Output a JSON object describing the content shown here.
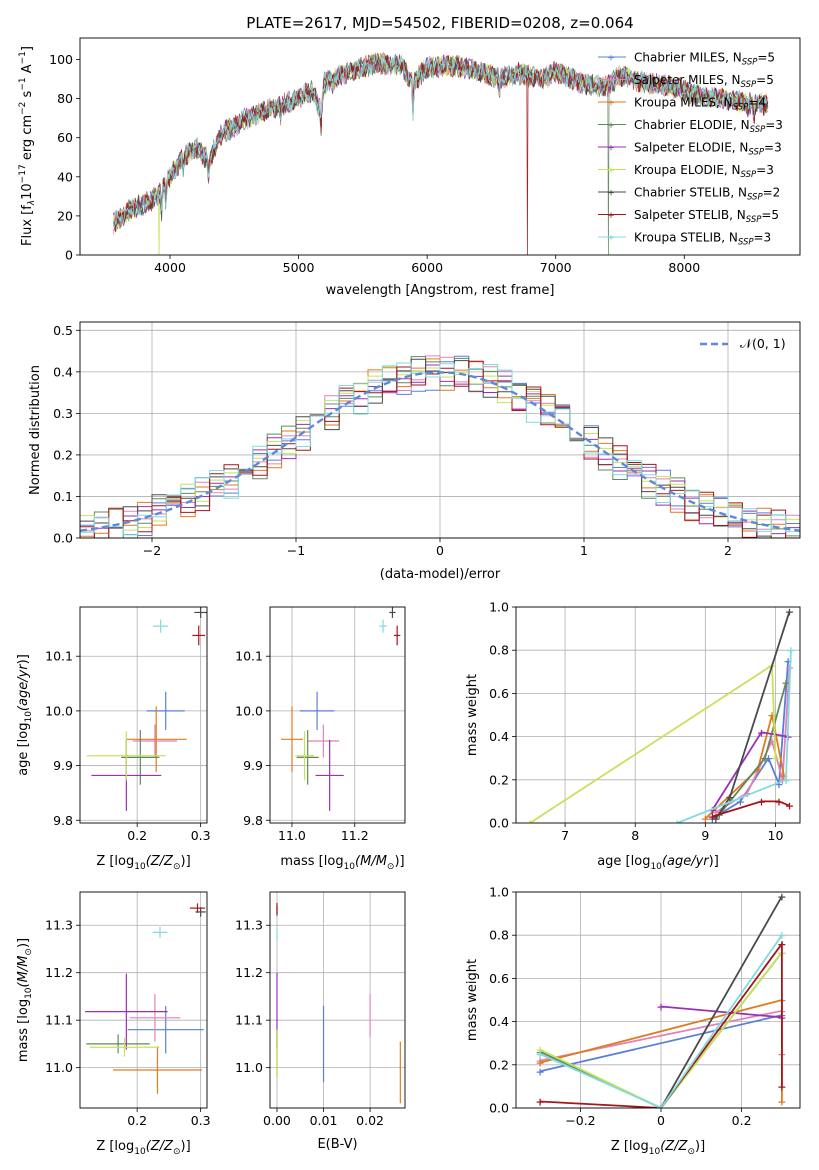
{
  "figure": {
    "title": "PLATE=2617, MJD=54502, FIBERID=0208, z=0.064"
  },
  "series": [
    {
      "name": "Chabrier MILES, N$_{SSP}$=5",
      "label_main": "Chabrier MILES, N",
      "label_sub": "SSP",
      "label_tail": "=5",
      "color": "#5b7fd6"
    },
    {
      "name": "Salpeter MILES, N$_{SSP}$=5",
      "label_main": "Salpeter MILES, N",
      "label_sub": "SSP",
      "label_tail": "=5",
      "color": "#e381b8"
    },
    {
      "name": "Kroupa MILES, N$_{SSP}$=4",
      "label_main": "Kroupa MILES, N",
      "label_sub": "SSP",
      "label_tail": "=4",
      "color": "#e07a1f"
    },
    {
      "name": "Chabrier ELODIE, N$_{SSP}$=3",
      "label_main": "Chabrier ELODIE, N",
      "label_sub": "SSP",
      "label_tail": "=3",
      "color": "#5f8a5f"
    },
    {
      "name": "Salpeter ELODIE, N$_{SSP}$=3",
      "label_main": "Salpeter ELODIE, N",
      "label_sub": "SSP",
      "label_tail": "=3",
      "color": "#9b30b5"
    },
    {
      "name": "Kroupa ELODIE, N$_{SSP}$=3",
      "label_main": "Kroupa ELODIE, N",
      "label_sub": "SSP",
      "label_tail": "=3",
      "color": "#c6e25a"
    },
    {
      "name": "Chabrier STELIB, N$_{SSP}$=2",
      "label_main": "Chabrier STELIB, N",
      "label_sub": "SSP",
      "label_tail": "=2",
      "color": "#4a4a4a"
    },
    {
      "name": "Salpeter STELIB, N$_{SSP}$=5",
      "label_main": "Salpeter STELIB, N",
      "label_sub": "SSP",
      "label_tail": "=5",
      "color": "#a4161a"
    },
    {
      "name": "Kroupa STELIB, N$_{SSP}$=3",
      "label_main": "Kroupa STELIB, N",
      "label_sub": "SSP",
      "label_tail": "=3",
      "color": "#7fdbe0"
    }
  ],
  "chart_data": [
    {
      "id": "spectrum",
      "type": "line",
      "xlabel": "wavelength [Angstrom, rest frame]",
      "ylabel_main": "Flux [f",
      "ylabel_rest": "10",
      "ylabel_exp": "−17",
      "ylabel_units": "erg cm",
      "xlim": [
        3300,
        8900
      ],
      "ylim": [
        0,
        111
      ],
      "xticks": [
        4000,
        5000,
        6000,
        7000,
        8000
      ],
      "yticks": [
        0,
        20,
        40,
        60,
        80,
        100
      ],
      "continuum": [
        [
          3560,
          16
        ],
        [
          3700,
          24
        ],
        [
          3800,
          26
        ],
        [
          3900,
          30
        ],
        [
          4000,
          40
        ],
        [
          4100,
          50
        ],
        [
          4200,
          55
        ],
        [
          4300,
          48
        ],
        [
          4400,
          62
        ],
        [
          4500,
          66
        ],
        [
          4600,
          70
        ],
        [
          4800,
          75
        ],
        [
          5000,
          80
        ],
        [
          5100,
          84
        ],
        [
          5175,
          74
        ],
        [
          5200,
          88
        ],
        [
          5400,
          94
        ],
        [
          5600,
          98
        ],
        [
          5800,
          97
        ],
        [
          5890,
          88
        ],
        [
          6000,
          96
        ],
        [
          6200,
          97
        ],
        [
          6400,
          94
        ],
        [
          6563,
          90
        ],
        [
          6700,
          93
        ],
        [
          6900,
          90
        ],
        [
          7000,
          94
        ],
        [
          7200,
          88
        ],
        [
          7400,
          86
        ],
        [
          7500,
          92
        ],
        [
          7700,
          88
        ],
        [
          7900,
          86
        ],
        [
          8100,
          82
        ],
        [
          8300,
          80
        ],
        [
          8500,
          78
        ],
        [
          8600,
          77
        ]
      ],
      "absorption_lines": [
        [
          3934,
          -12
        ],
        [
          3968,
          -10
        ],
        [
          4102,
          -6
        ],
        [
          4300,
          -10
        ],
        [
          4861,
          -5
        ],
        [
          5175,
          -8
        ],
        [
          5270,
          -4
        ],
        [
          5890,
          -16
        ],
        [
          6563,
          -6
        ],
        [
          8498,
          -4
        ],
        [
          8542,
          -6
        ],
        [
          8662,
          -5
        ]
      ],
      "dropouts": [
        [
          3915,
          5
        ],
        [
          6780,
          7
        ],
        [
          7410,
          3
        ]
      ],
      "legend_position": "upper-right"
    },
    {
      "id": "residuals",
      "type": "histogram",
      "xlabel": "(data-model)/error",
      "ylabel": "Normed distribution",
      "xlim": [
        -2.5,
        2.5
      ],
      "ylim": [
        0,
        0.52
      ],
      "xticks": [
        -2,
        -1,
        0,
        1,
        2
      ],
      "yticks": [
        0.0,
        0.1,
        0.2,
        0.3,
        0.4,
        0.5
      ],
      "bin_width": 0.1,
      "reference_label": "𝒩(0, 1)",
      "reference_color": "#5b8bd8",
      "legend_position": "upper-right",
      "series_variation_seed": 7
    },
    {
      "id": "age_vs_z",
      "type": "errorbar",
      "xlabel": "Z [log",
      "ylabel": "age  [log",
      "xlim": [
        0.11,
        0.31
      ],
      "ylim": [
        9.795,
        10.19
      ],
      "xticks": [
        0.2,
        0.3
      ],
      "yticks": [
        9.8,
        9.9,
        10.0,
        10.1
      ],
      "points": [
        {
          "s": 0,
          "x": 0.245,
          "y": 10.0,
          "xerr": 0.03,
          "yerr": 0.035
        },
        {
          "s": 1,
          "x": 0.228,
          "y": 9.945,
          "xerr": 0.035,
          "yerr": 0.03
        },
        {
          "s": 2,
          "x": 0.23,
          "y": 9.948,
          "xerr": 0.048,
          "yerr": 0.06
        },
        {
          "s": 3,
          "x": 0.205,
          "y": 9.915,
          "xerr": 0.03,
          "yerr": 0.05
        },
        {
          "s": 4,
          "x": 0.183,
          "y": 9.882,
          "xerr": 0.055,
          "yerr": 0.065
        },
        {
          "s": 5,
          "x": 0.183,
          "y": 9.918,
          "xerr": 0.062,
          "yerr": 0.045
        },
        {
          "s": 6,
          "x": 0.3,
          "y": 10.18,
          "xerr": 0.01,
          "yerr": 0.01
        },
        {
          "s": 7,
          "x": 0.297,
          "y": 10.138,
          "xerr": 0.01,
          "yerr": 0.018
        },
        {
          "s": 8,
          "x": 0.237,
          "y": 10.155,
          "xerr": 0.012,
          "yerr": 0.012
        }
      ]
    },
    {
      "id": "age_vs_mass",
      "type": "errorbar",
      "xlabel": "mass [log",
      "ylabel": "",
      "xlim": [
        10.93,
        11.36
      ],
      "ylim": [
        9.795,
        10.19
      ],
      "xticks": [
        11.0,
        11.2
      ],
      "yticks": [
        9.8,
        9.9,
        10.0,
        10.1
      ],
      "points": [
        {
          "s": 0,
          "x": 11.08,
          "y": 10.0,
          "xerr": 0.055,
          "yerr": 0.035
        },
        {
          "s": 1,
          "x": 11.1,
          "y": 9.945,
          "xerr": 0.05,
          "yerr": 0.03
        },
        {
          "s": 2,
          "x": 11.0,
          "y": 9.948,
          "xerr": 0.035,
          "yerr": 0.06
        },
        {
          "s": 3,
          "x": 11.05,
          "y": 9.915,
          "xerr": 0.035,
          "yerr": 0.05
        },
        {
          "s": 4,
          "x": 11.12,
          "y": 9.882,
          "xerr": 0.045,
          "yerr": 0.065
        },
        {
          "s": 5,
          "x": 11.04,
          "y": 9.918,
          "xerr": 0.03,
          "yerr": 0.045
        },
        {
          "s": 6,
          "x": 11.32,
          "y": 10.18,
          "xerr": 0.01,
          "yerr": 0.01
        },
        {
          "s": 7,
          "x": 11.335,
          "y": 10.138,
          "xerr": 0.01,
          "yerr": 0.018
        },
        {
          "s": 8,
          "x": 11.29,
          "y": 10.155,
          "xerr": 0.012,
          "yerr": 0.012
        }
      ]
    },
    {
      "id": "weight_vs_age",
      "type": "line",
      "xlabel": "age  [log",
      "ylabel": "mass weight",
      "xlim": [
        6.3,
        10.35
      ],
      "ylim": [
        0,
        1.0
      ],
      "xticks": [
        7,
        8,
        9,
        10
      ],
      "yticks": [
        0.0,
        0.2,
        0.4,
        0.6,
        0.8,
        1.0
      ],
      "lines": [
        {
          "s": 0,
          "pts": [
            [
              9.1,
              0.02
            ],
            [
              9.5,
              0.1
            ],
            [
              9.9,
              0.3
            ],
            [
              10.05,
              0.18
            ],
            [
              10.18,
              0.75
            ]
          ]
        },
        {
          "s": 1,
          "pts": [
            [
              9.15,
              0.05
            ],
            [
              9.6,
              0.14
            ],
            [
              9.95,
              0.38
            ],
            [
              10.1,
              0.2
            ],
            [
              10.2,
              0.72
            ]
          ]
        },
        {
          "s": 2,
          "pts": [
            [
              9.0,
              0.02
            ],
            [
              9.75,
              0.25
            ],
            [
              9.95,
              0.5
            ],
            [
              10.12,
              0.22
            ]
          ]
        },
        {
          "s": 3,
          "pts": [
            [
              9.2,
              0.04
            ],
            [
              9.85,
              0.3
            ],
            [
              10.15,
              0.65
            ]
          ]
        },
        {
          "s": 4,
          "pts": [
            [
              9.1,
              0.06
            ],
            [
              9.8,
              0.42
            ],
            [
              10.18,
              0.4
            ]
          ]
        },
        {
          "s": 5,
          "pts": [
            [
              6.5,
              0.0
            ],
            [
              9.95,
              0.73
            ],
            [
              10.0,
              0.3
            ]
          ]
        },
        {
          "s": 6,
          "pts": [
            [
              9.15,
              0.02
            ],
            [
              9.35,
              0.12
            ],
            [
              10.2,
              0.98
            ]
          ]
        },
        {
          "s": 7,
          "pts": [
            [
              9.1,
              0.03
            ],
            [
              9.8,
              0.1
            ],
            [
              10.05,
              0.1
            ],
            [
              10.2,
              0.08
            ]
          ]
        },
        {
          "s": 8,
          "pts": [
            [
              8.6,
              0.0
            ],
            [
              10.15,
              0.2
            ],
            [
              10.22,
              0.8
            ]
          ]
        }
      ]
    },
    {
      "id": "mass_vs_z",
      "type": "errorbar",
      "xlabel": "Z [log",
      "ylabel": "mass [log",
      "xlim": [
        0.11,
        0.31
      ],
      "ylim": [
        10.915,
        11.37
      ],
      "xticks": [
        0.2,
        0.3
      ],
      "yticks": [
        11.0,
        11.1,
        11.2,
        11.3
      ],
      "points": [
        {
          "s": 0,
          "x": 0.245,
          "y": 11.08,
          "xerr": 0.06,
          "yerr": 0.05
        },
        {
          "s": 1,
          "x": 0.228,
          "y": 11.105,
          "xerr": 0.04,
          "yerr": 0.05
        },
        {
          "s": 2,
          "x": 0.232,
          "y": 10.995,
          "xerr": 0.07,
          "yerr": 0.05
        },
        {
          "s": 3,
          "x": 0.17,
          "y": 11.05,
          "xerr": 0.05,
          "yerr": 0.02
        },
        {
          "s": 4,
          "x": 0.183,
          "y": 11.118,
          "xerr": 0.065,
          "yerr": 0.08
        },
        {
          "s": 5,
          "x": 0.18,
          "y": 11.043,
          "xerr": 0.055,
          "yerr": 0.02
        },
        {
          "s": 6,
          "x": 0.3,
          "y": 11.328,
          "xerr": 0.008,
          "yerr": 0.01
        },
        {
          "s": 7,
          "x": 0.295,
          "y": 11.336,
          "xerr": 0.012,
          "yerr": 0.01
        },
        {
          "s": 8,
          "x": 0.236,
          "y": 11.285,
          "xerr": 0.012,
          "yerr": 0.012
        }
      ]
    },
    {
      "id": "mass_vs_ebv",
      "type": "errorbar",
      "xlabel": "E(B-V)",
      "ylabel": "",
      "xlim": [
        -0.0015,
        0.0275
      ],
      "ylim": [
        10.915,
        11.37
      ],
      "xticks": [
        0.0,
        0.01,
        0.02
      ],
      "yticks": [
        11.0,
        11.1,
        11.2,
        11.3
      ],
      "points": [
        {
          "s": 0,
          "x": 0.01,
          "y": 11.05,
          "xerr": 0,
          "yerr": 0.08
        },
        {
          "s": 1,
          "x": 0.02,
          "y": 11.11,
          "xerr": 0,
          "yerr": 0.045
        },
        {
          "s": 2,
          "x": 0.0265,
          "y": 10.99,
          "xerr": 0,
          "yerr": 0.065
        },
        {
          "s": 3,
          "x": 0.0,
          "y": 11.03,
          "xerr": 0,
          "yerr": 0.05
        },
        {
          "s": 4,
          "x": 0.0,
          "y": 11.12,
          "xerr": 0,
          "yerr": 0.08
        },
        {
          "s": 5,
          "x": 0.0,
          "y": 11.03,
          "xerr": 0,
          "yerr": 0.05
        },
        {
          "s": 6,
          "x": 0.0,
          "y": 11.33,
          "xerr": 0,
          "yerr": 0.01
        },
        {
          "s": 7,
          "x": 0.0,
          "y": 11.335,
          "xerr": 0,
          "yerr": 0.012
        },
        {
          "s": 8,
          "x": 0.0,
          "y": 11.28,
          "xerr": 0,
          "yerr": 0.012
        }
      ]
    },
    {
      "id": "weight_vs_z",
      "type": "line",
      "xlabel": "Z [log",
      "ylabel": "mass weight",
      "xlim": [
        -0.36,
        0.345
      ],
      "ylim": [
        0,
        1.0
      ],
      "xticks": [
        -0.2,
        0.0,
        0.2
      ],
      "yticks": [
        0.0,
        0.2,
        0.4,
        0.6,
        0.8,
        1.0
      ],
      "lines": [
        {
          "s": 0,
          "pts": [
            [
              -0.3,
              0.17
            ],
            [
              0.3,
              0.43
            ]
          ]
        },
        {
          "s": 1,
          "pts": [
            [
              -0.3,
              0.22
            ],
            [
              0.3,
              0.45
            ],
            [
              0.3,
              0.25
            ]
          ]
        },
        {
          "s": 2,
          "pts": [
            [
              -0.3,
              0.21
            ],
            [
              0.3,
              0.5
            ],
            [
              0.3,
              0.03
            ]
          ]
        },
        {
          "s": 3,
          "pts": [
            [
              -0.3,
              0.26
            ],
            [
              0.0,
              0.0
            ],
            [
              0.3,
              0.72
            ]
          ]
        },
        {
          "s": 4,
          "pts": [
            [
              0.0,
              0.47
            ],
            [
              0.3,
              0.42
            ]
          ]
        },
        {
          "s": 5,
          "pts": [
            [
              -0.3,
              0.27
            ],
            [
              0.0,
              0.0
            ],
            [
              0.3,
              0.72
            ]
          ]
        },
        {
          "s": 6,
          "pts": [
            [
              0.0,
              0.0
            ],
            [
              0.3,
              0.98
            ]
          ]
        },
        {
          "s": 7,
          "pts": [
            [
              -0.3,
              0.03
            ],
            [
              0.0,
              0.0
            ],
            [
              0.3,
              0.76
            ],
            [
              0.3,
              0.1
            ]
          ]
        },
        {
          "s": 8,
          "pts": [
            [
              -0.3,
              0.25
            ],
            [
              0.0,
              0.0
            ],
            [
              0.3,
              0.8
            ]
          ]
        }
      ]
    }
  ]
}
